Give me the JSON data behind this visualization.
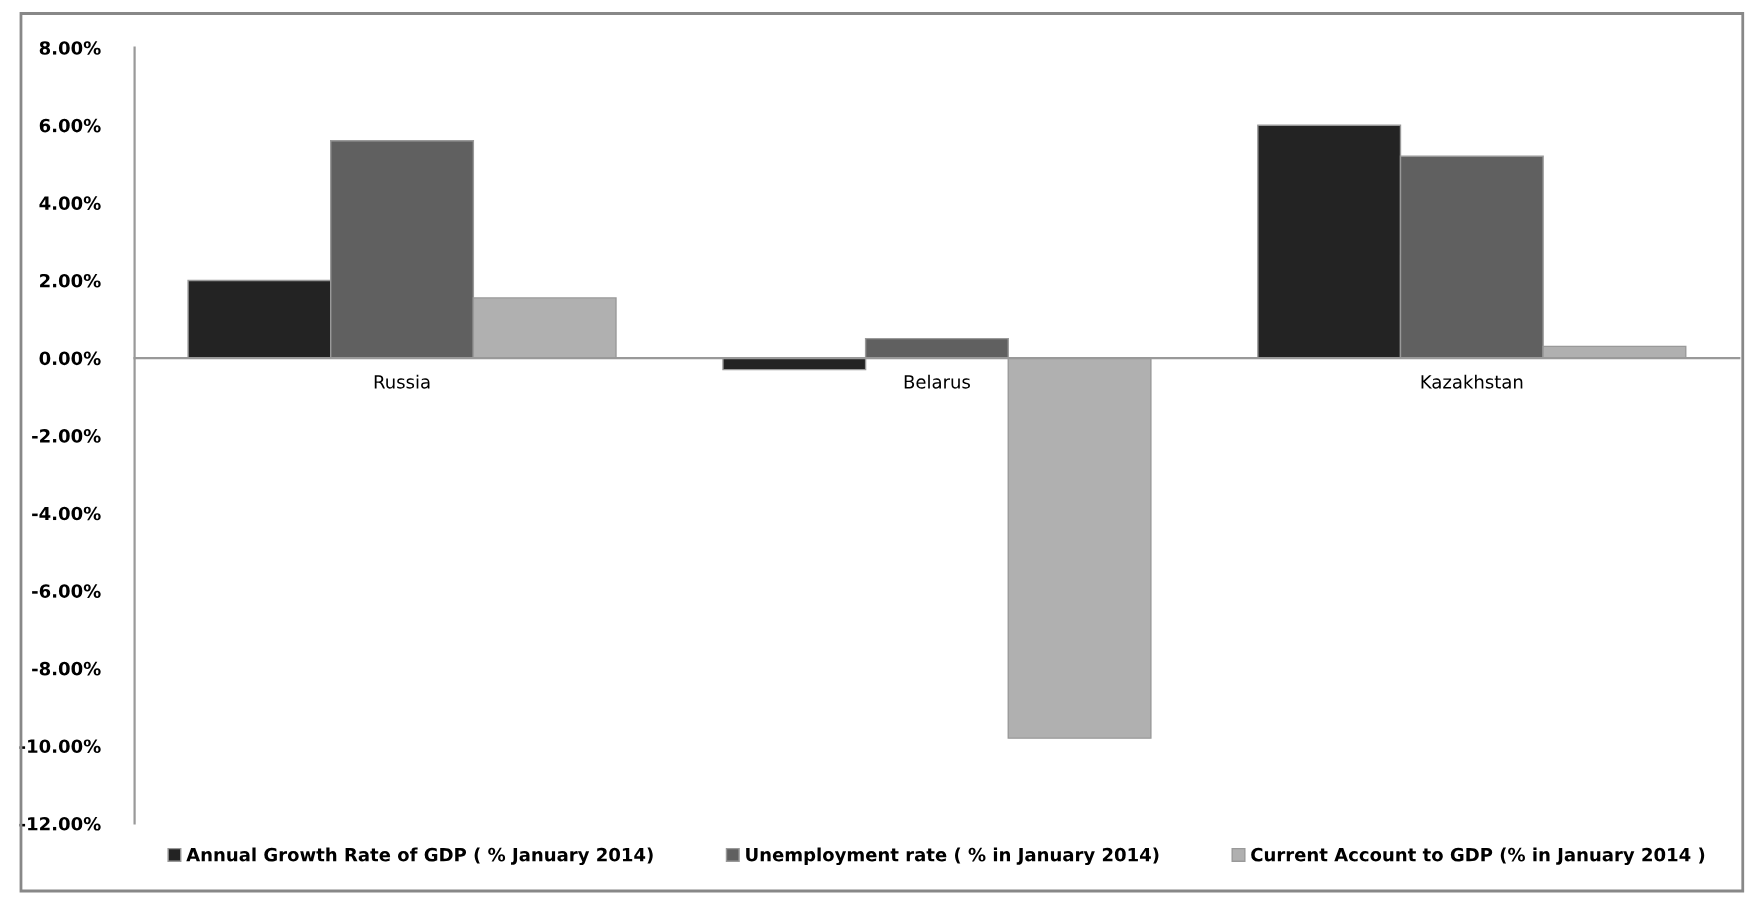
{
  "chart_data": {
    "type": "bar",
    "categories": [
      "Russia",
      "Belarus",
      "Kazakhstan"
    ],
    "series": [
      {
        "name": "Annual Growth Rate of GDP ( % January 2014)",
        "color": "#232323",
        "values": [
          2.0,
          -0.3,
          6.0
        ]
      },
      {
        "name": "Unemployment rate ( % in January 2014)",
        "color": "#606060",
        "values": [
          5.6,
          0.5,
          5.2
        ]
      },
      {
        "name": "Current Account to GDP (% in January 2014 )",
        "color": "#b0b0b0",
        "values": [
          1.55,
          -9.8,
          0.3
        ]
      }
    ],
    "ylim": [
      -12,
      8
    ],
    "yticks": [
      {
        "value": -12,
        "label": "-12.00%"
      },
      {
        "value": -10,
        "label": "-10.00%"
      },
      {
        "value": -8,
        "label": "-8.00%"
      },
      {
        "value": -6,
        "label": "-6.00%"
      },
      {
        "value": -4,
        "label": "-4.00%"
      },
      {
        "value": -2,
        "label": "-2.00%"
      },
      {
        "value": 0,
        "label": "0.00%"
      },
      {
        "value": 2,
        "label": "2.00%"
      },
      {
        "value": 4,
        "label": "4.00%"
      },
      {
        "value": 6,
        "label": "6.00%"
      },
      {
        "value": 8,
        "label": "8.00%"
      }
    ],
    "grid": false,
    "legend": "bottom"
  }
}
